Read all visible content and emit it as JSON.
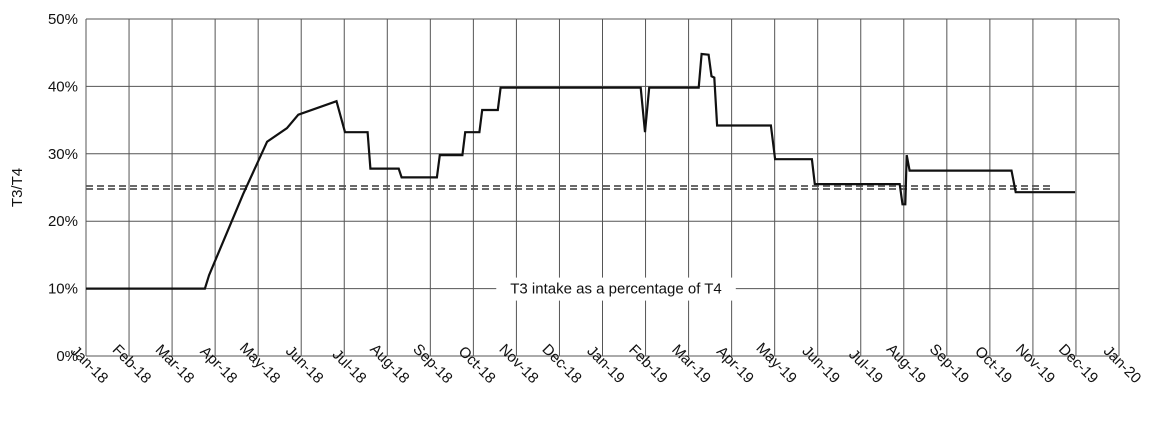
{
  "chart_data": {
    "type": "line",
    "title": "",
    "xlabel": "",
    "ylabel": "T3/T4",
    "annotation": "T3 intake as a percentage of T4",
    "x_ticks": [
      "Jan-18",
      "Feb-18",
      "Mar-18",
      "Apr-18",
      "May-18",
      "Jun-18",
      "Jul-18",
      "Aug-18",
      "Sep-18",
      "Oct-18",
      "Nov-18",
      "Dec-18",
      "Jan-19",
      "Feb-19",
      "Mar-19",
      "Apr-19",
      "May-19",
      "Jun-19",
      "Jul-19",
      "Aug-19",
      "Sep-19",
      "Oct-19",
      "Nov-19",
      "Dec-19",
      "Jan-20"
    ],
    "y_ticks": [
      "0%",
      "10%",
      "20%",
      "30%",
      "40%",
      "50%"
    ],
    "ylim": [
      0,
      50
    ],
    "grid": true,
    "colors": {
      "series": "#111111",
      "reference": "#555555",
      "grid": "#555555"
    },
    "reference_line": {
      "style": "dashed",
      "y": 25
    },
    "series": [
      {
        "style": "solid",
        "points": [
          [
            "2018-01-01",
            10
          ],
          [
            "2018-03-26",
            10
          ],
          [
            "2018-03-29",
            12
          ],
          [
            "2018-04-22",
            24
          ],
          [
            "2018-05-09",
            31.8
          ],
          [
            "2018-05-23",
            33.8
          ],
          [
            "2018-05-31",
            35.8
          ],
          [
            "2018-06-27",
            37.8
          ],
          [
            "2018-07-03",
            33.2
          ],
          [
            "2018-07-19",
            33.2
          ],
          [
            "2018-07-21",
            27.8
          ],
          [
            "2018-08-10",
            27.8
          ],
          [
            "2018-08-12",
            26.5
          ],
          [
            "2018-09-06",
            26.5
          ],
          [
            "2018-09-08",
            29.8
          ],
          [
            "2018-09-24",
            29.8
          ],
          [
            "2018-09-26",
            33.2
          ],
          [
            "2018-10-06",
            33.2
          ],
          [
            "2018-10-08",
            36.5
          ],
          [
            "2018-10-19",
            36.5
          ],
          [
            "2018-10-21",
            39.8
          ],
          [
            "2019-01-28",
            39.8
          ],
          [
            "2019-01-31",
            33.2
          ],
          [
            "2019-02-03",
            39.8
          ],
          [
            "2019-03-10",
            39.8
          ],
          [
            "2019-03-12",
            44.8
          ],
          [
            "2019-03-17",
            44.7
          ],
          [
            "2019-03-19",
            41.5
          ],
          [
            "2019-03-21",
            41.3
          ],
          [
            "2019-03-23",
            34.2
          ],
          [
            "2019-04-30",
            34.2
          ],
          [
            "2019-05-03",
            29.2
          ],
          [
            "2019-05-29",
            29.2
          ],
          [
            "2019-05-31",
            25.5
          ],
          [
            "2019-07-30",
            25.5
          ],
          [
            "2019-08-01",
            22.5
          ],
          [
            "2019-08-03",
            22.5
          ],
          [
            "2019-08-04",
            29.8
          ],
          [
            "2019-08-06",
            27.5
          ],
          [
            "2019-10-17",
            27.5
          ],
          [
            "2019-10-20",
            24.3
          ],
          [
            "2019-12-01",
            24.3
          ]
        ]
      }
    ]
  }
}
